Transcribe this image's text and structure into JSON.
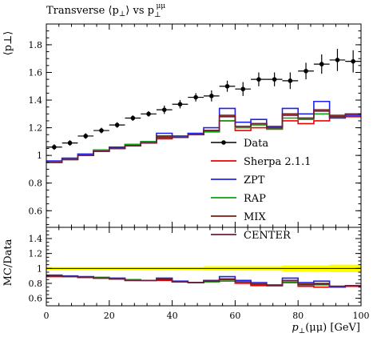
{
  "title": "Transverse ⟨p⊥⟩ vs p⊥μμ",
  "title_parts": {
    "main": "Transverse ⟨p",
    "sub1": "⊥",
    "mid": "⟩ vs p",
    "sub2": "⊥",
    "sup2": "μμ"
  },
  "colors": {
    "data": "#000000",
    "sherpa": "#ee0000",
    "zpt": "#2020ee",
    "rap": "#10a010",
    "mix": "#7a1a0a",
    "center": "#6a2040",
    "band": "#ffff00"
  },
  "chart_data": [
    {
      "type": "line",
      "panel": "main",
      "ylabel": "⟨p⊥⟩",
      "ylim": [
        0.48,
        1.95
      ],
      "xlim": [
        0,
        100
      ],
      "yticks": [
        0.6,
        0.8,
        1,
        1.2,
        1.4,
        1.6,
        1.8
      ],
      "ytick_labels": [
        "0.6",
        "0.8",
        "1",
        "1.2",
        "1.4",
        "1.6",
        "1.8"
      ],
      "bin_edges": [
        0,
        5,
        10,
        15,
        20,
        25,
        30,
        35,
        40,
        45,
        50,
        55,
        60,
        65,
        70,
        75,
        80,
        85,
        90,
        95,
        100
      ],
      "series": [
        {
          "name": "Data",
          "style": "points",
          "x": [
            2.5,
            7.5,
            12.5,
            17.5,
            22.5,
            27.5,
            32.5,
            37.5,
            42.5,
            47.5,
            52.5,
            57.5,
            62.5,
            67.5,
            72.5,
            77.5,
            82.5,
            87.5,
            92.5,
            97.5
          ],
          "values": [
            1.06,
            1.09,
            1.14,
            1.18,
            1.22,
            1.27,
            1.3,
            1.33,
            1.37,
            1.42,
            1.43,
            1.5,
            1.48,
            1.55,
            1.55,
            1.54,
            1.61,
            1.66,
            1.69,
            1.68
          ],
          "errors": [
            0.02,
            0.02,
            0.02,
            0.02,
            0.02,
            0.02,
            0.02,
            0.03,
            0.03,
            0.03,
            0.04,
            0.04,
            0.05,
            0.05,
            0.05,
            0.06,
            0.06,
            0.07,
            0.08,
            0.08
          ]
        },
        {
          "name": "Sherpa 2.1.1",
          "style": "step",
          "values": [
            0.95,
            0.97,
            1.0,
            1.03,
            1.05,
            1.07,
            1.09,
            1.12,
            1.13,
            1.15,
            1.18,
            1.25,
            1.18,
            1.2,
            1.19,
            1.25,
            1.23,
            1.25,
            1.28,
            1.28
          ]
        },
        {
          "name": "ZPT",
          "style": "step",
          "values": [
            0.96,
            0.98,
            1.01,
            1.04,
            1.06,
            1.08,
            1.1,
            1.16,
            1.14,
            1.16,
            1.2,
            1.34,
            1.24,
            1.26,
            1.21,
            1.34,
            1.3,
            1.39,
            1.27,
            1.29
          ]
        },
        {
          "name": "RAP",
          "style": "step",
          "values": [
            0.95,
            0.97,
            1.0,
            1.04,
            1.05,
            1.08,
            1.1,
            1.14,
            1.13,
            1.15,
            1.17,
            1.25,
            1.2,
            1.22,
            1.19,
            1.27,
            1.26,
            1.3,
            1.28,
            1.3
          ]
        },
        {
          "name": "MIX",
          "style": "step",
          "values": [
            0.95,
            0.97,
            1.0,
            1.03,
            1.05,
            1.07,
            1.09,
            1.14,
            1.13,
            1.15,
            1.18,
            1.29,
            1.21,
            1.23,
            1.2,
            1.3,
            1.27,
            1.33,
            1.29,
            1.3
          ]
        },
        {
          "name": "CENTER",
          "style": "step",
          "values": [
            0.95,
            0.97,
            1.0,
            1.03,
            1.05,
            1.07,
            1.09,
            1.13,
            1.13,
            1.15,
            1.18,
            1.28,
            1.21,
            1.23,
            1.2,
            1.29,
            1.27,
            1.32,
            1.28,
            1.3
          ]
        }
      ]
    },
    {
      "type": "line",
      "panel": "ratio",
      "ylabel": "MC/Data",
      "xlabel": "p⊥(μμ) [GeV]",
      "xlabel_parts": {
        "p": "p",
        "sub": "⊥",
        "rest": "(μμ) [GeV]"
      },
      "ylim": [
        0.5,
        1.55
      ],
      "xlim": [
        0,
        100
      ],
      "yticks": [
        0.6,
        0.8,
        1,
        1.2,
        1.4
      ],
      "ytick_labels": [
        "0.6",
        "0.8",
        "1",
        "1.2",
        "1.4"
      ],
      "xticks": [
        0,
        20,
        40,
        60,
        80,
        100
      ],
      "xtick_labels": [
        "0",
        "20",
        "40",
        "60",
        "80",
        "100"
      ],
      "band": {
        "lower": [
          0.98,
          0.98,
          0.98,
          0.98,
          0.98,
          0.98,
          0.98,
          0.98,
          0.98,
          0.98,
          0.97,
          0.97,
          0.97,
          0.97,
          0.97,
          0.96,
          0.96,
          0.96,
          0.95,
          0.95
        ],
        "upper": [
          1.02,
          1.02,
          1.02,
          1.02,
          1.02,
          1.02,
          1.02,
          1.02,
          1.02,
          1.02,
          1.03,
          1.03,
          1.03,
          1.03,
          1.03,
          1.04,
          1.04,
          1.04,
          1.05,
          1.05
        ]
      },
      "series": [
        {
          "name": "Sherpa 2.1.1",
          "values": [
            0.89,
            0.89,
            0.88,
            0.87,
            0.86,
            0.84,
            0.84,
            0.84,
            0.82,
            0.81,
            0.82,
            0.83,
            0.8,
            0.77,
            0.77,
            0.81,
            0.76,
            0.75,
            0.75,
            0.76
          ]
        },
        {
          "name": "ZPT",
          "values": [
            0.91,
            0.9,
            0.89,
            0.88,
            0.87,
            0.85,
            0.84,
            0.87,
            0.83,
            0.81,
            0.84,
            0.89,
            0.84,
            0.81,
            0.78,
            0.87,
            0.81,
            0.83,
            0.75,
            0.77
          ]
        },
        {
          "name": "RAP",
          "values": [
            0.9,
            0.89,
            0.88,
            0.88,
            0.86,
            0.85,
            0.84,
            0.86,
            0.82,
            0.81,
            0.82,
            0.83,
            0.81,
            0.79,
            0.77,
            0.82,
            0.78,
            0.78,
            0.76,
            0.77
          ]
        },
        {
          "name": "MIX",
          "values": [
            0.9,
            0.89,
            0.88,
            0.87,
            0.86,
            0.84,
            0.84,
            0.86,
            0.82,
            0.81,
            0.83,
            0.86,
            0.82,
            0.79,
            0.77,
            0.84,
            0.79,
            0.8,
            0.76,
            0.77
          ]
        },
        {
          "name": "CENTER",
          "values": [
            0.9,
            0.89,
            0.88,
            0.87,
            0.86,
            0.84,
            0.84,
            0.85,
            0.82,
            0.81,
            0.83,
            0.85,
            0.82,
            0.79,
            0.77,
            0.84,
            0.78,
            0.79,
            0.76,
            0.77
          ]
        }
      ]
    }
  ]
}
